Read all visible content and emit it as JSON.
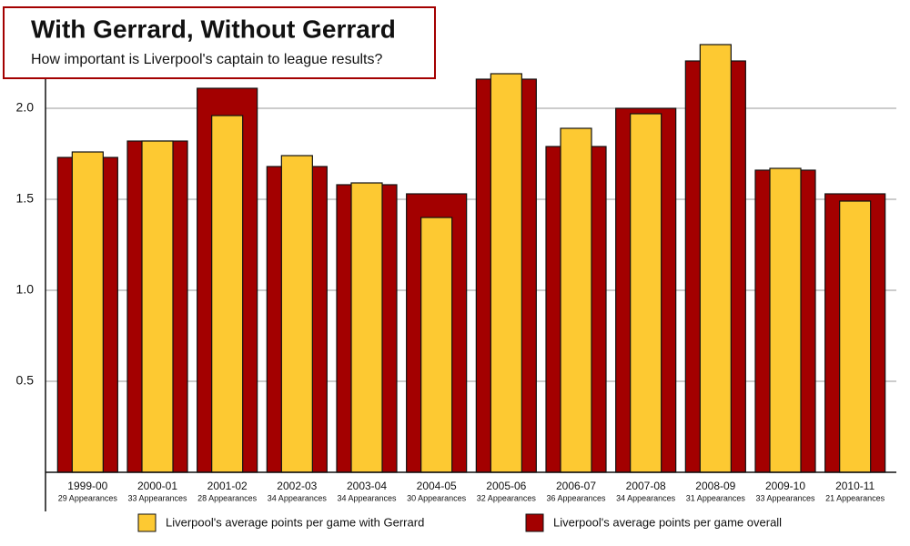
{
  "chart_data": {
    "type": "bar",
    "title": "With Gerrard, Without Gerrard",
    "subtitle": "How important is Liverpool's captain to league results?",
    "categories": [
      "1999-00",
      "2000-01",
      "2001-02",
      "2002-03",
      "2003-04",
      "2004-05",
      "2005-06",
      "2006-07",
      "2007-08",
      "2008-09",
      "2009-10",
      "2010-11"
    ],
    "appearances": [
      "29 Appearances",
      "33 Appearances",
      "28 Appearances",
      "34 Appearances",
      "34 Appearances",
      "30 Appearances",
      "32 Appearances",
      "36 Appearances",
      "34 Appearances",
      "31 Appearances",
      "33 Appearances",
      "21 Appearances"
    ],
    "series": [
      {
        "name": "Liverpool's average points per game overall",
        "color": "#a30000",
        "values": [
          1.73,
          1.82,
          2.11,
          1.68,
          1.58,
          1.53,
          2.16,
          1.79,
          2.0,
          2.26,
          1.66,
          1.53
        ]
      },
      {
        "name": "Liverpool's average points per game with Gerrard",
        "color": "#fdc932",
        "values": [
          1.76,
          1.82,
          1.96,
          1.74,
          1.59,
          1.4,
          2.19,
          1.89,
          1.97,
          2.35,
          1.67,
          1.49
        ]
      }
    ],
    "ylim": [
      0,
      2.5
    ],
    "yticks": [
      0.5,
      {
        "value": 1,
        "label": "1.0"
      },
      1.5,
      {
        "value": 2,
        "label": "2.0"
      }
    ],
    "grid": true
  }
}
